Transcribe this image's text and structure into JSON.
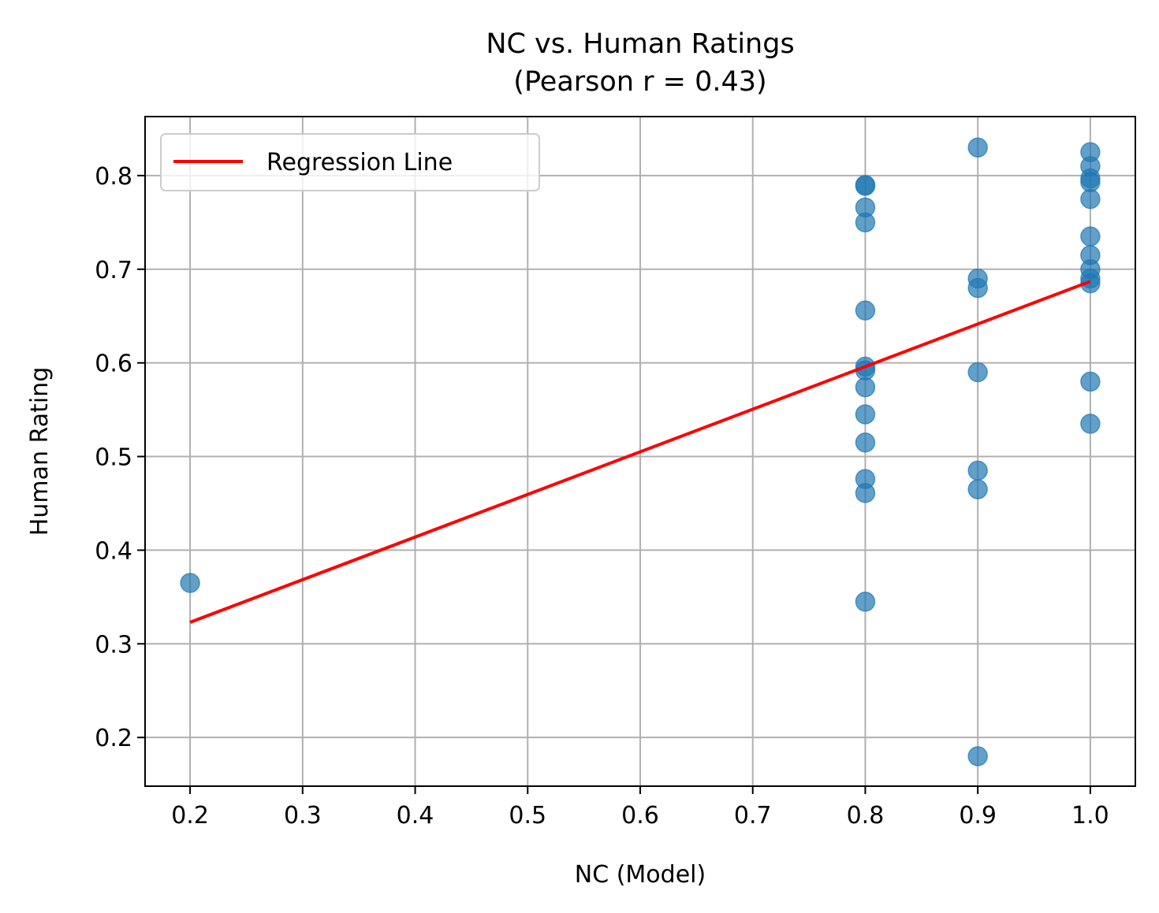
{
  "chart_data": {
    "type": "scatter",
    "title": [
      "NC vs. Human Ratings",
      "(Pearson r = 0.43)"
    ],
    "xlabel": "NC (Model)",
    "ylabel": "Human Rating",
    "xlim": [
      0.16,
      1.04
    ],
    "ylim": [
      0.148,
      0.863
    ],
    "xticks": [
      0.2,
      0.3,
      0.4,
      0.5,
      0.6,
      0.7,
      0.8,
      0.9,
      1.0
    ],
    "xtick_labels": [
      "0.2",
      "0.3",
      "0.4",
      "0.5",
      "0.6",
      "0.7",
      "0.8",
      "0.9",
      "1.0"
    ],
    "yticks": [
      0.2,
      0.3,
      0.4,
      0.5,
      0.6,
      0.7,
      0.8
    ],
    "ytick_labels": [
      "0.2",
      "0.3",
      "0.4",
      "0.5",
      "0.6",
      "0.7",
      "0.8"
    ],
    "grid": true,
    "legend_position": "top-left",
    "point_color": "#1f77b4",
    "line_color": "#ff0000",
    "points": [
      {
        "x": 0.2,
        "y": 0.365
      },
      {
        "x": 0.8,
        "y": 0.79
      },
      {
        "x": 0.8,
        "y": 0.789
      },
      {
        "x": 0.8,
        "y": 0.766
      },
      {
        "x": 0.8,
        "y": 0.75
      },
      {
        "x": 0.8,
        "y": 0.656
      },
      {
        "x": 0.8,
        "y": 0.596
      },
      {
        "x": 0.8,
        "y": 0.592
      },
      {
        "x": 0.8,
        "y": 0.574
      },
      {
        "x": 0.8,
        "y": 0.545
      },
      {
        "x": 0.8,
        "y": 0.515
      },
      {
        "x": 0.8,
        "y": 0.476
      },
      {
        "x": 0.8,
        "y": 0.461
      },
      {
        "x": 0.8,
        "y": 0.345
      },
      {
        "x": 0.9,
        "y": 0.83
      },
      {
        "x": 0.9,
        "y": 0.69
      },
      {
        "x": 0.9,
        "y": 0.68
      },
      {
        "x": 0.9,
        "y": 0.59
      },
      {
        "x": 0.9,
        "y": 0.485
      },
      {
        "x": 0.9,
        "y": 0.465
      },
      {
        "x": 0.9,
        "y": 0.18
      },
      {
        "x": 1.0,
        "y": 0.825
      },
      {
        "x": 1.0,
        "y": 0.81
      },
      {
        "x": 1.0,
        "y": 0.797
      },
      {
        "x": 1.0,
        "y": 0.793
      },
      {
        "x": 1.0,
        "y": 0.775
      },
      {
        "x": 1.0,
        "y": 0.735
      },
      {
        "x": 1.0,
        "y": 0.715
      },
      {
        "x": 1.0,
        "y": 0.7
      },
      {
        "x": 1.0,
        "y": 0.69
      },
      {
        "x": 1.0,
        "y": 0.685
      },
      {
        "x": 1.0,
        "y": 0.58
      },
      {
        "x": 1.0,
        "y": 0.535
      }
    ],
    "regression_line": {
      "name": "Regression Line",
      "x": [
        0.2,
        1.0
      ],
      "y": [
        0.323,
        0.687
      ]
    }
  }
}
